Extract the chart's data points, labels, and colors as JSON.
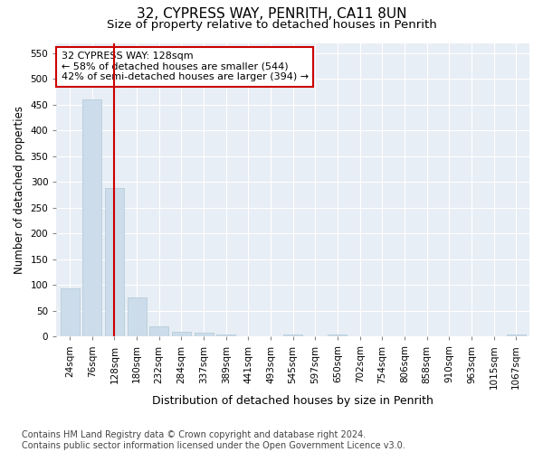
{
  "title1": "32, CYPRESS WAY, PENRITH, CA11 8UN",
  "title2": "Size of property relative to detached houses in Penrith",
  "xlabel": "Distribution of detached houses by size in Penrith",
  "ylabel": "Number of detached properties",
  "categories": [
    "24sqm",
    "76sqm",
    "128sqm",
    "180sqm",
    "232sqm",
    "284sqm",
    "337sqm",
    "389sqm",
    "441sqm",
    "493sqm",
    "545sqm",
    "597sqm",
    "650sqm",
    "702sqm",
    "754sqm",
    "806sqm",
    "858sqm",
    "910sqm",
    "963sqm",
    "1015sqm",
    "1067sqm"
  ],
  "values": [
    93,
    460,
    288,
    76,
    20,
    9,
    7,
    4,
    0,
    0,
    5,
    0,
    4,
    0,
    0,
    0,
    0,
    0,
    0,
    0,
    4
  ],
  "bar_color": "#ccdcea",
  "bar_edgecolor": "#aec8d8",
  "vline_x": 2,
  "vline_color": "#cc0000",
  "annotation_text": "32 CYPRESS WAY: 128sqm\n← 58% of detached houses are smaller (544)\n42% of semi-detached houses are larger (394) →",
  "annotation_box_edgecolor": "#cc0000",
  "ylim": [
    0,
    570
  ],
  "yticks": [
    0,
    50,
    100,
    150,
    200,
    250,
    300,
    350,
    400,
    450,
    500,
    550
  ],
  "bg_color": "#ffffff",
  "plot_bg_color": "#e8eef5",
  "footer": "Contains HM Land Registry data © Crown copyright and database right 2024.\nContains public sector information licensed under the Open Government Licence v3.0.",
  "title1_fontsize": 11,
  "title2_fontsize": 9.5,
  "xlabel_fontsize": 9,
  "ylabel_fontsize": 8.5,
  "footer_fontsize": 7,
  "tick_fontsize": 7.5,
  "annot_fontsize": 8
}
